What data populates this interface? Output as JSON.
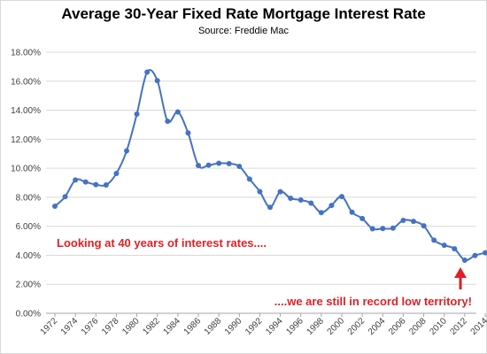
{
  "chart_data": {
    "type": "line",
    "title": "Average 30-Year Fixed Rate Mortgage Interest Rate",
    "subtitle": "Source: Freddie Mac",
    "xlabel": "",
    "ylabel": "",
    "ylim": [
      0,
      18
    ],
    "xlim": [
      1972,
      2014
    ],
    "grid": true,
    "legend": "none",
    "y_ticks": [
      "0.00%",
      "2.00%",
      "4.00%",
      "6.00%",
      "8.00%",
      "10.00%",
      "12.00%",
      "14.00%",
      "16.00%",
      "18.00%"
    ],
    "x_ticks": [
      "1972",
      "1974",
      "1976",
      "1978",
      "1980",
      "1982",
      "1984",
      "1986",
      "1988",
      "1990",
      "1992",
      "1994",
      "1996",
      "1998",
      "2000",
      "2002",
      "2004",
      "2006",
      "2008",
      "2010",
      "2012",
      "2014"
    ],
    "series": [
      {
        "name": "",
        "color": "#4472c4",
        "x": [
          1972,
          1973,
          1974,
          1975,
          1976,
          1977,
          1978,
          1979,
          1980,
          1981,
          1982,
          1983,
          1984,
          1985,
          1986,
          1987,
          1988,
          1989,
          1990,
          1991,
          1992,
          1993,
          1994,
          1995,
          1996,
          1997,
          1998,
          1999,
          2000,
          2001,
          2002,
          2003,
          2004,
          2005,
          2006,
          2007,
          2008,
          2009,
          2010,
          2011,
          2012,
          2013,
          2014
        ],
        "values": [
          7.38,
          8.04,
          9.19,
          9.05,
          8.87,
          8.85,
          9.64,
          11.2,
          13.74,
          16.63,
          16.04,
          13.24,
          13.88,
          12.43,
          10.19,
          10.21,
          10.34,
          10.32,
          10.13,
          9.25,
          8.39,
          7.31,
          8.38,
          7.93,
          7.81,
          7.6,
          6.94,
          7.44,
          8.05,
          6.97,
          6.54,
          5.83,
          5.84,
          5.87,
          6.41,
          6.34,
          6.03,
          5.04,
          4.69,
          4.45,
          3.66,
          3.98,
          4.17
        ]
      }
    ],
    "annotations": [
      "Looking at 40 years of interest rates....",
      "....we are still in record low territory!"
    ],
    "annotation_color": "#e31e24"
  }
}
